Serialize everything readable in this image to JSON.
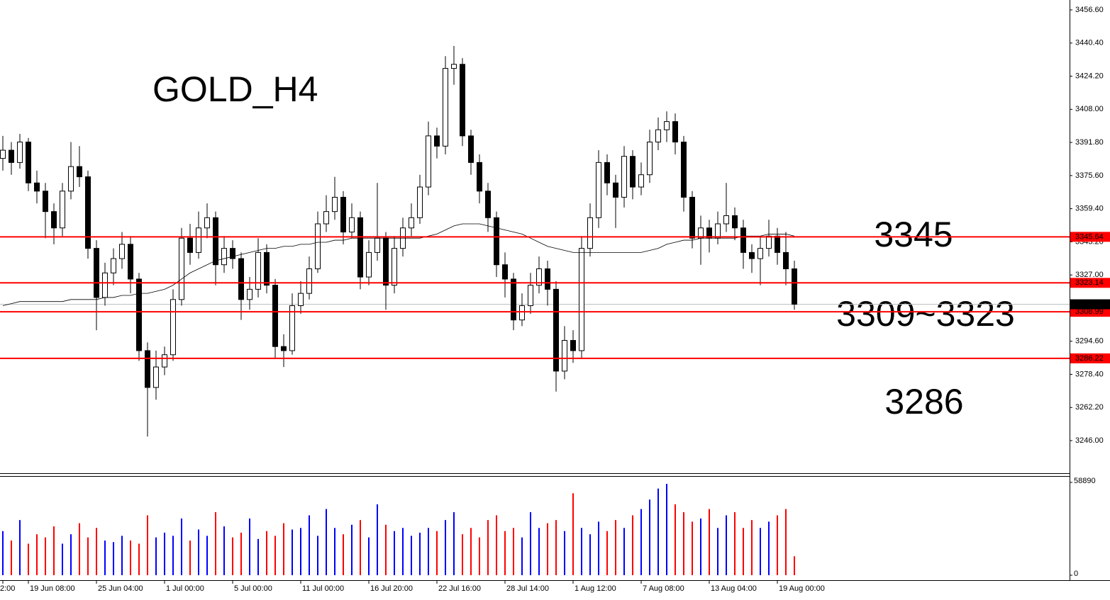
{
  "chart_data": {
    "type": "candlestick",
    "categories": [
      "2:00",
      null,
      null,
      "19 Jun 08:00",
      null,
      null,
      null,
      null,
      null,
      null,
      null,
      "25 Jun 04:00",
      null,
      null,
      null,
      null,
      null,
      null,
      null,
      "1 Jul 00:00",
      null,
      null,
      null,
      null,
      null,
      null,
      null,
      "5 Jul 00:00",
      null,
      null,
      null,
      null,
      null,
      null,
      null,
      "11 Jul 00:00",
      null,
      null,
      null,
      null,
      null,
      null,
      null,
      "16 Jul 20:00",
      null,
      null,
      null,
      null,
      null,
      null,
      null,
      "22 Jul 16:00",
      null,
      null,
      null,
      null,
      null,
      null,
      null,
      "28 Jul 14:00",
      null,
      null,
      null,
      null,
      null,
      null,
      null,
      "1 Aug 12:00",
      null,
      null,
      null,
      null,
      null,
      null,
      null,
      "7 Aug 08:00",
      null,
      null,
      null,
      null,
      null,
      null,
      null,
      "13 Aug 04:00",
      null,
      null,
      null,
      null,
      null,
      null,
      null,
      "19 Aug 00:00",
      null,
      null
    ],
    "open": [
      3384,
      3388,
      3382,
      3392,
      3372,
      3368,
      3358,
      3350,
      3368,
      3380,
      3375,
      3340,
      3316,
      3328,
      3335,
      3342,
      3325,
      3290,
      3272,
      3282,
      3288,
      3315,
      3345,
      3338,
      3350,
      3355,
      3332,
      3340,
      3335,
      3315,
      3320,
      3338,
      3322,
      3292,
      3290,
      3312,
      3318,
      3330,
      3352,
      3358,
      3365,
      3348,
      3355,
      3326,
      3338,
      3345,
      3322,
      3340,
      3350,
      3355,
      3370,
      3395,
      3390,
      3428,
      3430,
      3395,
      3382,
      3368,
      3355,
      3332,
      3325,
      3305,
      3312,
      3322,
      3330,
      3320,
      3280,
      3295,
      3290,
      3340,
      3355,
      3382,
      3372,
      3365,
      3385,
      3370,
      3376,
      3392,
      3398,
      3402,
      3392,
      3365,
      3345,
      3350,
      3345,
      3352,
      3356,
      3350,
      3338,
      3335,
      3340,
      3346,
      3338,
      3330
    ],
    "high": [
      3395,
      3392,
      3396,
      3394,
      3378,
      3372,
      3362,
      3372,
      3392,
      3390,
      3378,
      3344,
      3333,
      3340,
      3348,
      3346,
      3328,
      3294,
      3290,
      3292,
      3320,
      3350,
      3352,
      3358,
      3362,
      3358,
      3346,
      3344,
      3338,
      3326,
      3345,
      3342,
      3325,
      3298,
      3318,
      3324,
      3336,
      3358,
      3366,
      3375,
      3368,
      3362,
      3358,
      3344,
      3372,
      3348,
      3346,
      3355,
      3362,
      3376,
      3402,
      3399,
      3434,
      3439,
      3433,
      3398,
      3386,
      3372,
      3358,
      3338,
      3328,
      3318,
      3328,
      3336,
      3334,
      3324,
      3302,
      3300,
      3346,
      3362,
      3388,
      3386,
      3376,
      3390,
      3388,
      3382,
      3398,
      3404,
      3407,
      3406,
      3395,
      3368,
      3356,
      3354,
      3358,
      3372,
      3360,
      3354,
      3342,
      3346,
      3354,
      3350,
      3348,
      3334
    ],
    "low": [
      3378,
      3376,
      3379,
      3368,
      3362,
      3345,
      3342,
      3346,
      3364,
      3370,
      3335,
      3300,
      3312,
      3322,
      3330,
      3318,
      3285,
      3248,
      3266,
      3278,
      3285,
      3312,
      3332,
      3335,
      3345,
      3322,
      3328,
      3330,
      3305,
      3310,
      3316,
      3318,
      3286,
      3282,
      3288,
      3308,
      3315,
      3328,
      3348,
      3354,
      3342,
      3345,
      3320,
      3322,
      3334,
      3310,
      3318,
      3336,
      3346,
      3352,
      3366,
      3384,
      3386,
      3420,
      3390,
      3376,
      3362,
      3348,
      3326,
      3316,
      3300,
      3302,
      3308,
      3318,
      3312,
      3270,
      3276,
      3284,
      3286,
      3336,
      3350,
      3366,
      3350,
      3360,
      3364,
      3366,
      3372,
      3388,
      3392,
      3386,
      3358,
      3340,
      3332,
      3338,
      3342,
      3348,
      3344,
      3330,
      3328,
      3322,
      3336,
      3332,
      3322,
      3310
    ],
    "close": [
      3388,
      3382,
      3392,
      3372,
      3368,
      3358,
      3350,
      3368,
      3380,
      3375,
      3340,
      3316,
      3328,
      3335,
      3342,
      3325,
      3290,
      3272,
      3282,
      3288,
      3315,
      3345,
      3338,
      3350,
      3355,
      3332,
      3340,
      3335,
      3315,
      3320,
      3338,
      3322,
      3292,
      3290,
      3312,
      3318,
      3330,
      3352,
      3358,
      3365,
      3348,
      3355,
      3326,
      3338,
      3345,
      3322,
      3340,
      3350,
      3355,
      3370,
      3395,
      3390,
      3428,
      3430,
      3395,
      3382,
      3368,
      3355,
      3332,
      3325,
      3305,
      3312,
      3322,
      3330,
      3320,
      3280,
      3295,
      3290,
      3340,
      3355,
      3382,
      3372,
      3365,
      3385,
      3370,
      3376,
      3392,
      3398,
      3402,
      3392,
      3365,
      3345,
      3350,
      3345,
      3352,
      3356,
      3350,
      3338,
      3335,
      3340,
      3346,
      3338,
      3330,
      3312.67
    ],
    "up_color": "#ffffff",
    "down_color": "#000000",
    "wick_color": "#000000",
    "ma": {
      "color": "#000000",
      "values": [
        3312,
        3313,
        3314,
        3314,
        3314,
        3314,
        3314,
        3314,
        3315,
        3315,
        3315,
        3315,
        3316,
        3316,
        3317,
        3317,
        3318,
        3318,
        3319,
        3320,
        3322,
        3325,
        3328,
        3330,
        3332,
        3334,
        3335,
        3336,
        3337,
        3338,
        3339,
        3340,
        3340,
        3341,
        3341,
        3342,
        3342,
        3343,
        3343,
        3344,
        3344,
        3345,
        3345,
        3345,
        3345,
        3345,
        3345,
        3345,
        3345,
        3345,
        3346,
        3347,
        3349,
        3351,
        3352,
        3352,
        3352,
        3351,
        3350,
        3349,
        3348,
        3347,
        3345,
        3343,
        3341,
        3340,
        3339,
        3338,
        3338,
        3338,
        3338,
        3338,
        3338,
        3338,
        3338,
        3338,
        3339,
        3340,
        3342,
        3343,
        3344,
        3344,
        3345,
        3345,
        3345,
        3345,
        3345,
        3346,
        3346,
        3346,
        3347,
        3347,
        3347,
        3346
      ]
    },
    "ylim": [
      3230.07,
      3461.45
    ],
    "yticks": [
      {
        "value": 3456.6,
        "label": "3456.60"
      },
      {
        "value": 3440.4,
        "label": "3440.40"
      },
      {
        "value": 3424.2,
        "label": "3424.20"
      },
      {
        "value": 3408,
        "label": "3408.00"
      },
      {
        "value": 3391.8,
        "label": "3391.80"
      },
      {
        "value": 3375.6,
        "label": "3375.60"
      },
      {
        "value": 3359.4,
        "label": "3359.40"
      },
      {
        "value": 3343.2,
        "label": "3343.20"
      },
      {
        "value": 3327,
        "label": "3327.00"
      },
      {
        "value": 3310.8,
        "label": "3310.80"
      },
      {
        "value": 3294.6,
        "label": "3294.60"
      },
      {
        "value": 3278.4,
        "label": "3278.40"
      },
      {
        "value": 3262.2,
        "label": "3262.20"
      },
      {
        "value": 3246,
        "label": "3246.00"
      }
    ],
    "hlines": {
      "color": "#ff0000",
      "values": [
        3345.64,
        3323.14,
        3308.99,
        3286.22
      ]
    },
    "current_price": 3312.67,
    "annotations": [
      {
        "text": "GOLD_H4",
        "color": "#ff0000"
      },
      {
        "text": "3345",
        "color": "#ff0000"
      },
      {
        "text": "3309~3323",
        "color": "#00007f"
      },
      {
        "text": "3286",
        "color": "#ff0000"
      }
    ],
    "volume": {
      "up_color": "#0000ff",
      "down_color": "#ff0000",
      "values": [
        28000,
        22000,
        35000,
        20000,
        26000,
        24000,
        31000,
        20000,
        26000,
        33000,
        24000,
        30000,
        22000,
        21000,
        25000,
        22000,
        20000,
        38000,
        24000,
        27000,
        25000,
        36000,
        22000,
        29000,
        25000,
        40000,
        31000,
        24000,
        27000,
        36000,
        23000,
        28000,
        25000,
        33000,
        29000,
        30000,
        38000,
        25000,
        42000,
        30000,
        26000,
        32000,
        35000,
        24000,
        45000,
        32000,
        28000,
        30000,
        25000,
        27000,
        30000,
        28000,
        35000,
        40000,
        26000,
        30000,
        24000,
        35000,
        38000,
        28000,
        30000,
        24000,
        40000,
        30000,
        33000,
        35000,
        28000,
        52000,
        30000,
        26000,
        34000,
        28000,
        35000,
        30000,
        38000,
        42000,
        48000,
        55000,
        58000,
        45000,
        40000,
        34000,
        36000,
        42000,
        30000,
        38000,
        40000,
        30000,
        35000,
        30000,
        34000,
        38000,
        42000,
        12000
      ],
      "ylim": [
        0,
        58890
      ],
      "yticks": [
        58890,
        0
      ]
    }
  }
}
